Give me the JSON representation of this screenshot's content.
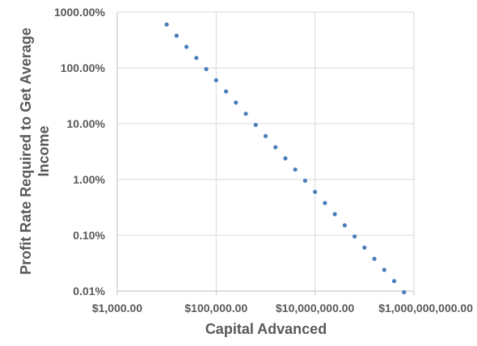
{
  "chart_data": {
    "type": "scatter",
    "xlabel": "Capital Advanced",
    "ylabel_lines": [
      "Profit Rate Required to Get Average",
      "Income"
    ],
    "x_scale": "log",
    "y_scale": "log",
    "xlim": [
      1000,
      1000000000
    ],
    "ylim": [
      0.0001,
      10
    ],
    "grid": true,
    "legend": "none",
    "x_ticks": [
      {
        "value": 1000,
        "label": "$1,000.00"
      },
      {
        "value": 100000,
        "label": "$100,000.00"
      },
      {
        "value": 10000000,
        "label": "$10,000,000.00"
      },
      {
        "value": 1000000000,
        "label": "$1,000,000,000.00"
      }
    ],
    "y_ticks": [
      {
        "value": 0.0001,
        "label": "0.01%"
      },
      {
        "value": 0.001,
        "label": "0.10%"
      },
      {
        "value": 0.01,
        "label": "1.00%"
      },
      {
        "value": 0.1,
        "label": "10.00%"
      },
      {
        "value": 1,
        "label": "100.00%"
      },
      {
        "value": 10,
        "label": "1000.00%"
      }
    ],
    "series": [
      {
        "color": "#4a7ebb",
        "x": [
          10000,
          15849,
          25119,
          39811,
          63096,
          100000,
          158489,
          251189,
          398107,
          630957,
          1000000,
          1584893,
          2511886,
          3981072,
          6309573,
          10000000,
          15848932,
          25118864,
          39810717,
          63095734,
          100000000,
          158489319,
          251188643,
          398107171,
          630957344
        ],
        "y": [
          6.0,
          3.7857,
          2.3887,
          1.5071,
          0.9509,
          0.6,
          0.37857,
          0.23887,
          0.15071,
          0.09509,
          0.06,
          0.037857,
          0.023887,
          0.015071,
          0.009509,
          0.006,
          0.0037857,
          0.0023887,
          0.0015071,
          0.0009509,
          0.0006,
          0.00037857,
          0.00023887,
          0.00015071,
          9.509e-05
        ]
      }
    ]
  }
}
